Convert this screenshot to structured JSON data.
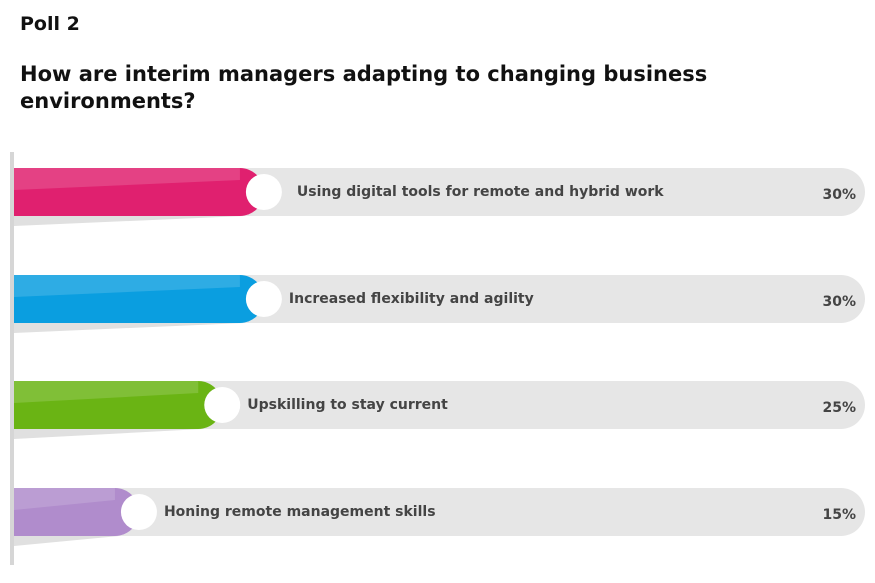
{
  "chart_data": {
    "type": "bar",
    "orientation": "horizontal",
    "title": "Poll 2",
    "subtitle": "How are interim managers adapting to changing business environments?",
    "categories": [
      "Using digital tools for remote and hybrid work",
      "Increased flexibility and agility",
      "Upskilling to stay current",
      "Honing remote management skills"
    ],
    "values": [
      30,
      30,
      25,
      15
    ],
    "value_labels": [
      "30%",
      "30%",
      "25%",
      "15%"
    ],
    "colors": [
      "#e0206f",
      "#0a9ee0",
      "#6ab414",
      "#b08ccc"
    ]
  }
}
